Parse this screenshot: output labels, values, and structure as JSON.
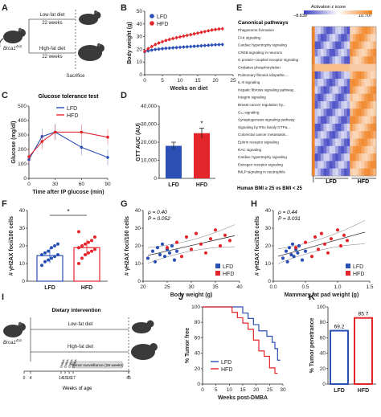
{
  "panels": {
    "A": {
      "label": "A",
      "mouse_label": "Brca1",
      "mouse_label_sup": "Δ/Δ",
      "low_fat_label": "Low-fat diet",
      "high_fat_label": "High-fat diet",
      "weeks_low": "22 weeks",
      "weeks_high": "22 weeks",
      "sacrifice": "Sacrifice"
    },
    "B": {
      "label": "B"
    },
    "C": {
      "label": "C"
    },
    "D": {
      "label": "D"
    },
    "E": {
      "label": "E",
      "legend_title": "Activation z score",
      "legend_min": "−8.639",
      "legend_max": "10.707",
      "heading": "Canonical pathways",
      "footer": "Human BMI ≥ 25 vs BMI < 25",
      "group_lfd": "LFD",
      "group_hfd": "HFD",
      "pathways": [
        "Phagosome formation",
        "FAK signaling",
        "Cardiac hypertrophy signaling",
        "CREB signaling in neurons",
        "G protein–coupled receptor signaling",
        "Oxidative phosphorylation",
        "Pulmonary fibrosis idiopathic...",
        "IL-8 signaling",
        "Hepatic fibrosis signaling pathway...",
        "Integrin signaling",
        "Breast cancer regulation by...",
        "G₁₃ signaling",
        "Synaptogenesis signaling pathway",
        "Signaling by Rho family GTPa...",
        "Colorectal cancer metastasis...",
        "Ephrin receptor signaling",
        "RAC signaling",
        "Cardiac hypertrophy signaling",
        "Estrogen receptor signaling",
        "fMLP signaling in neutrophils"
      ]
    },
    "F": {
      "label": "F",
      "sig": "*"
    },
    "G": {
      "label": "G",
      "rho": "ρ = 0.40",
      "p": "P = 0.052"
    },
    "H": {
      "label": "H",
      "rho": "ρ = 0.44",
      "p": "P = 0.031"
    },
    "I": {
      "label": "I",
      "title": "Dietary intervention",
      "low_fat_label": "Low-fat diet",
      "high_fat_label": "High-fat diet",
      "mouse_label": "Brca1",
      "mouse_label_sup": "Δ/Δ",
      "surveillance": "Tumor surveillance (28 weeks)",
      "xlabel": "Weeks of age",
      "ticks": [
        "0",
        "4",
        "14",
        "15",
        "16",
        "17",
        "45"
      ],
      "dmba_labels": [
        "DMBA",
        "DMBA",
        "DMBA",
        "DMBA"
      ]
    },
    "J": {
      "label": "J"
    },
    "K": {
      "label": "K"
    }
  },
  "colors": {
    "lfd": "#2a4fb5",
    "hfd": "#e3262b",
    "hm_low": "#3b3fc0",
    "hm_high": "#f07e1b"
  },
  "chart_data": [
    {
      "panel": "B",
      "type": "line",
      "xlabel": "Weeks on diet",
      "ylabel": "Body weight (g)",
      "xlim": [
        0,
        25
      ],
      "ylim": [
        0,
        50
      ],
      "xticks": [
        0,
        5,
        10,
        15,
        20,
        25
      ],
      "yticks": [
        0,
        10,
        20,
        30,
        40,
        50
      ],
      "legend": "top-left",
      "x": [
        0,
        1,
        2,
        3,
        4,
        5,
        6,
        7,
        8,
        9,
        10,
        11,
        12,
        13,
        14,
        15,
        16,
        17,
        18,
        19,
        20,
        21,
        22
      ],
      "series": [
        {
          "name": "LFD",
          "values": [
            18,
            18.8,
            19.4,
            19.9,
            20.2,
            20.5,
            20.8,
            21,
            21.2,
            21.4,
            21.6,
            21.8,
            22,
            22.2,
            22.4,
            22.6,
            22.8,
            23,
            23.2,
            23.4,
            23.6,
            23.7,
            23.8
          ]
        },
        {
          "name": "HFD",
          "values": [
            18.5,
            20.5,
            22.2,
            23.8,
            25,
            26,
            27,
            27.8,
            28.5,
            29.2,
            29.8,
            30.4,
            31,
            31.6,
            32.2,
            32.8,
            33.4,
            34,
            34.6,
            35.2,
            35.6,
            36,
            36.2
          ]
        }
      ]
    },
    {
      "panel": "C",
      "type": "line",
      "title": "Glucose tolerance test",
      "xlabel": "Time after IP glucose (min)",
      "ylabel": "Glucose (mg/dl)",
      "xlim": [
        0,
        90
      ],
      "ylim": [
        0,
        500
      ],
      "xticks": [
        0,
        30,
        60,
        90
      ],
      "yticks": [
        0,
        100,
        200,
        300,
        400,
        500
      ],
      "legend": "top",
      "x": [
        0,
        15,
        30,
        60,
        90
      ],
      "series": [
        {
          "name": "LFD",
          "values": [
            130,
            290,
            320,
            215,
            145
          ]
        },
        {
          "name": "HFD",
          "values": [
            150,
            255,
            320,
            320,
            285
          ]
        }
      ]
    },
    {
      "panel": "D",
      "type": "bar",
      "ylabel": "GTT AUC (AU)",
      "categories": [
        "LFD",
        "HFD"
      ],
      "values": [
        18000,
        25000
      ],
      "errors": [
        2000,
        2800
      ],
      "ylim": [
        0,
        40000
      ],
      "yticks": [
        "0",
        "10,000",
        "20,000",
        "30,000",
        "40,000"
      ],
      "annotation": "*"
    },
    {
      "panel": "E",
      "type": "heatmap",
      "legend_range": [
        -8.639,
        10.707
      ]
    },
    {
      "panel": "F",
      "type": "bar",
      "ylabel": "# γH2AX foci/100 cells",
      "categories": [
        "LFD",
        "HFD"
      ],
      "values": [
        14.5,
        19
      ],
      "errors": [
        4.2,
        4.5
      ],
      "ylim": [
        0,
        40
      ],
      "yticks": [
        0,
        10,
        20,
        30,
        40
      ],
      "points": [
        [
          9,
          11,
          12,
          13,
          14,
          15,
          15,
          16,
          17,
          19,
          20,
          21
        ],
        [
          10,
          13,
          15,
          16,
          17,
          18,
          19,
          20,
          21,
          22,
          23,
          25,
          28
        ]
      ]
    },
    {
      "panel": "G",
      "type": "scatter",
      "xlabel": "Body weight (g)",
      "ylabel": "# γH2AX foci/100 cells",
      "xlim": [
        20,
        40
      ],
      "ylim": [
        0,
        40
      ],
      "xticks": [
        20,
        25,
        30,
        35,
        40
      ],
      "yticks": [
        0,
        10,
        20,
        30,
        40
      ],
      "legend": "bottom-right",
      "series": [
        {
          "name": "LFD",
          "x": [
            21,
            22,
            22.5,
            23,
            23.5,
            24,
            24.5,
            25,
            25.5,
            26,
            26.5,
            27
          ],
          "y": [
            13,
            17,
            11,
            19,
            15,
            21,
            14,
            18,
            16,
            20,
            12,
            17
          ]
        },
        {
          "name": "HFD",
          "x": [
            25,
            27,
            28,
            29,
            30,
            31,
            32,
            33,
            34,
            35,
            36,
            37,
            38
          ],
          "y": [
            19,
            22,
            14,
            25,
            18,
            27,
            21,
            16,
            24,
            29,
            20,
            26,
            23
          ]
        }
      ]
    },
    {
      "panel": "H",
      "type": "scatter",
      "xlabel": "Mammary fat pad weight (g)",
      "ylabel": "# γH2AX foci/100 cells",
      "xlim": [
        0,
        1.5
      ],
      "ylim": [
        0,
        40
      ],
      "xticks": [
        0.0,
        0.5,
        1.0,
        1.5
      ],
      "yticks": [
        0,
        10,
        20,
        30,
        40
      ],
      "legend": "bottom-right",
      "series": [
        {
          "name": "LFD",
          "x": [
            0.15,
            0.2,
            0.22,
            0.25,
            0.28,
            0.3,
            0.32,
            0.35,
            0.38,
            0.4,
            0.45,
            0.5
          ],
          "y": [
            13,
            17,
            11,
            19,
            15,
            21,
            14,
            18,
            16,
            20,
            12,
            17
          ]
        },
        {
          "name": "HFD",
          "x": [
            0.35,
            0.5,
            0.6,
            0.65,
            0.7,
            0.75,
            0.8,
            0.85,
            0.9,
            1.0,
            1.05,
            1.1,
            1.15
          ],
          "y": [
            19,
            22,
            14,
            25,
            18,
            27,
            21,
            16,
            24,
            29,
            20,
            26,
            23
          ]
        }
      ]
    },
    {
      "panel": "J",
      "type": "line",
      "step": true,
      "xlabel": "Weeks post-DMBA",
      "ylabel": "% Tumor free",
      "xlim": [
        0,
        30
      ],
      "ylim": [
        0,
        100
      ],
      "xticks": [
        0,
        5,
        10,
        15,
        20,
        25,
        30
      ],
      "yticks": [
        0,
        20,
        40,
        60,
        80,
        100
      ],
      "legend": "bottom-left",
      "series": [
        {
          "name": "LFD",
          "x": [
            0,
            13,
            15,
            17,
            19,
            21,
            24,
            26,
            27,
            28
          ],
          "y": [
            100,
            100,
            92,
            85,
            77,
            69,
            62,
            54,
            46,
            31
          ]
        },
        {
          "name": "HFD",
          "x": [
            0,
            9,
            11,
            13,
            15,
            17,
            19,
            21,
            23,
            25,
            27
          ],
          "y": [
            100,
            100,
            93,
            86,
            79,
            71,
            57,
            43,
            36,
            21,
            14
          ]
        }
      ]
    },
    {
      "panel": "K",
      "type": "bar",
      "ylabel": "% Tumor penetrance",
      "categories": [
        "LFD",
        "HFD"
      ],
      "values": [
        69.2,
        85.7
      ],
      "ylim": [
        0,
        100
      ],
      "yticks": [
        0,
        20,
        40,
        60,
        80,
        100
      ],
      "value_labels": [
        "69.2",
        "85.7"
      ]
    }
  ]
}
